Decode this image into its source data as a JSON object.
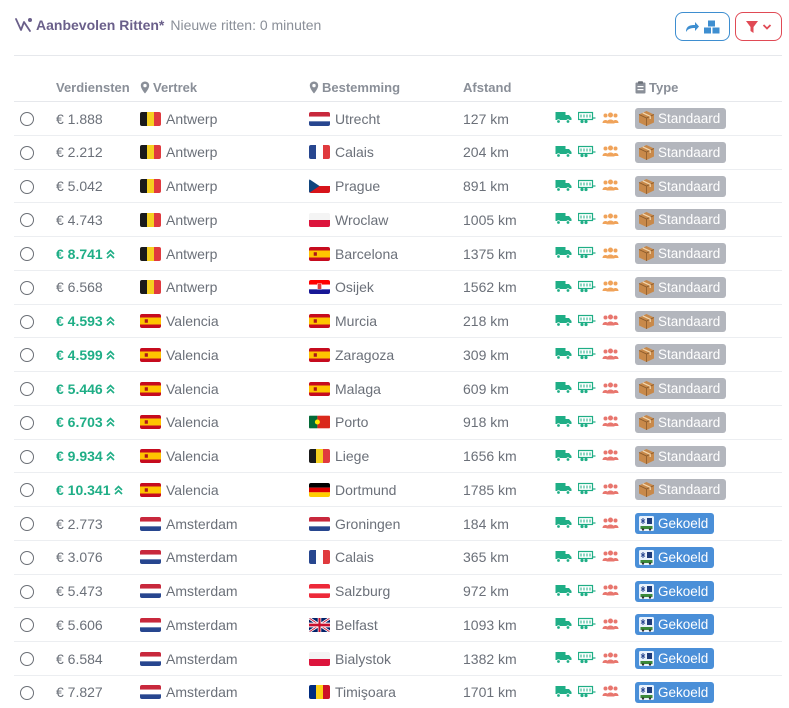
{
  "header": {
    "title": "Aanbevolen Ritten*",
    "subtitle": "Nieuwe ritten: 0 minuten",
    "title_icon": "route-icon",
    "share_button_icon": "share-arrow-icon",
    "filter_button_icon": "filter-icon"
  },
  "colors": {
    "title": "#6a5f8a",
    "accent_blue": "#3e8ed0",
    "accent_red": "#e04a55",
    "earn_high": "#1fae86",
    "standard_badge": "#b3b6bd",
    "cooled_badge": "#4a8fd8",
    "truck_icon": "#1fae86",
    "people_icon_orange": "#f0a35a",
    "people_icon_red": "#e8766e"
  },
  "columns": {
    "earnings": "Verdiensten",
    "departure": "Vertrek",
    "destination": "Bestemming",
    "distance": "Afstand",
    "type": "Type"
  },
  "rows": [
    {
      "earn": "€ 1.888",
      "high": false,
      "from": "Antwerp",
      "from_flag": "be",
      "to": "Utrecht",
      "to_flag": "nl",
      "dist": "127 km",
      "people": "orange",
      "type": "Standaard",
      "kind": "standard"
    },
    {
      "earn": "€ 2.212",
      "high": false,
      "from": "Antwerp",
      "from_flag": "be",
      "to": "Calais",
      "to_flag": "fr",
      "dist": "204 km",
      "people": "orange",
      "type": "Standaard",
      "kind": "standard"
    },
    {
      "earn": "€ 5.042",
      "high": false,
      "from": "Antwerp",
      "from_flag": "be",
      "to": "Prague",
      "to_flag": "cz",
      "dist": "891 km",
      "people": "orange",
      "type": "Standaard",
      "kind": "standard"
    },
    {
      "earn": "€ 4.743",
      "high": false,
      "from": "Antwerp",
      "from_flag": "be",
      "to": "Wroclaw",
      "to_flag": "pl",
      "dist": "1005 km",
      "people": "orange",
      "type": "Standaard",
      "kind": "standard"
    },
    {
      "earn": "€ 8.741",
      "high": true,
      "from": "Antwerp",
      "from_flag": "be",
      "to": "Barcelona",
      "to_flag": "es",
      "dist": "1375 km",
      "people": "orange",
      "type": "Standaard",
      "kind": "standard"
    },
    {
      "earn": "€ 6.568",
      "high": false,
      "from": "Antwerp",
      "from_flag": "be",
      "to": "Osijek",
      "to_flag": "hr",
      "dist": "1562 km",
      "people": "orange",
      "type": "Standaard",
      "kind": "standard"
    },
    {
      "earn": "€ 4.593",
      "high": true,
      "from": "Valencia",
      "from_flag": "es",
      "to": "Murcia",
      "to_flag": "es",
      "dist": "218 km",
      "people": "red",
      "type": "Standaard",
      "kind": "standard"
    },
    {
      "earn": "€ 4.599",
      "high": true,
      "from": "Valencia",
      "from_flag": "es",
      "to": "Zaragoza",
      "to_flag": "es",
      "dist": "309 km",
      "people": "red",
      "type": "Standaard",
      "kind": "standard"
    },
    {
      "earn": "€ 5.446",
      "high": true,
      "from": "Valencia",
      "from_flag": "es",
      "to": "Malaga",
      "to_flag": "es",
      "dist": "609 km",
      "people": "red",
      "type": "Standaard",
      "kind": "standard"
    },
    {
      "earn": "€ 6.703",
      "high": true,
      "from": "Valencia",
      "from_flag": "es",
      "to": "Porto",
      "to_flag": "pt",
      "dist": "918 km",
      "people": "red",
      "type": "Standaard",
      "kind": "standard"
    },
    {
      "earn": "€ 9.934",
      "high": true,
      "from": "Valencia",
      "from_flag": "es",
      "to": "Liege",
      "to_flag": "be",
      "dist": "1656 km",
      "people": "red",
      "type": "Standaard",
      "kind": "standard"
    },
    {
      "earn": "€ 10.341",
      "high": true,
      "from": "Valencia",
      "from_flag": "es",
      "to": "Dortmund",
      "to_flag": "de",
      "dist": "1785 km",
      "people": "red",
      "type": "Standaard",
      "kind": "standard"
    },
    {
      "earn": "€ 2.773",
      "high": false,
      "from": "Amsterdam",
      "from_flag": "nl",
      "to": "Groningen",
      "to_flag": "nl",
      "dist": "184 km",
      "people": "red",
      "type": "Gekoeld",
      "kind": "cooled"
    },
    {
      "earn": "€ 3.076",
      "high": false,
      "from": "Amsterdam",
      "from_flag": "nl",
      "to": "Calais",
      "to_flag": "fr",
      "dist": "365 km",
      "people": "red",
      "type": "Gekoeld",
      "kind": "cooled"
    },
    {
      "earn": "€ 5.473",
      "high": false,
      "from": "Amsterdam",
      "from_flag": "nl",
      "to": "Salzburg",
      "to_flag": "at",
      "dist": "972 km",
      "people": "red",
      "type": "Gekoeld",
      "kind": "cooled"
    },
    {
      "earn": "€ 5.606",
      "high": false,
      "from": "Amsterdam",
      "from_flag": "nl",
      "to": "Belfast",
      "to_flag": "gb",
      "dist": "1093 km",
      "people": "red",
      "type": "Gekoeld",
      "kind": "cooled"
    },
    {
      "earn": "€ 6.584",
      "high": false,
      "from": "Amsterdam",
      "from_flag": "nl",
      "to": "Bialystok",
      "to_flag": "pl",
      "dist": "1382 km",
      "people": "red",
      "type": "Gekoeld",
      "kind": "cooled"
    },
    {
      "earn": "€ 7.827",
      "high": false,
      "from": "Amsterdam",
      "from_flag": "nl",
      "to": "Timişoara",
      "to_flag": "ro",
      "dist": "1701 km",
      "people": "red",
      "type": "Gekoeld",
      "kind": "cooled"
    }
  ]
}
